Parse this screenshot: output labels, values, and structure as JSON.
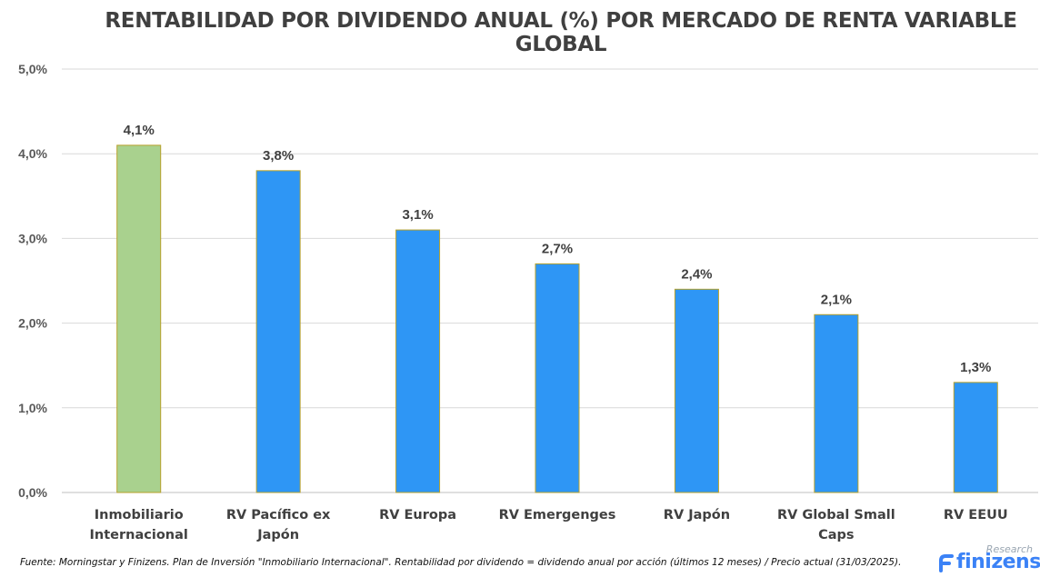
{
  "chart_data": {
    "type": "bar",
    "title": "RENTABILIDAD POR DIVIDENDO ANUAL (%) POR MERCADO DE RENTA VARIABLE GLOBAL",
    "categories": [
      [
        "Inmobiliario",
        "Internacional"
      ],
      [
        "RV Pacífico ex",
        "Japón"
      ],
      [
        "RV Europa"
      ],
      [
        "RV Emergenges"
      ],
      [
        "RV Japón"
      ],
      [
        "RV Global Small",
        "Caps"
      ],
      [
        "RV EEUU"
      ]
    ],
    "values": [
      4.1,
      3.8,
      3.1,
      2.7,
      2.4,
      2.1,
      1.3
    ],
    "data_labels": [
      "4,1%",
      "3,8%",
      "3,1%",
      "2,7%",
      "2,4%",
      "2,1%",
      "1,3%"
    ],
    "bar_colors": [
      "#a9d18e",
      "#2e96f5",
      "#2e96f5",
      "#2e96f5",
      "#2e96f5",
      "#2e96f5",
      "#2e96f5"
    ],
    "bar_outline_color": "#b8a12a",
    "y_ticks": [
      0,
      1,
      2,
      3,
      4,
      5
    ],
    "y_tick_labels": [
      "0,0%",
      "1,0%",
      "2,0%",
      "3,0%",
      "4,0%",
      "5,0%"
    ],
    "ylim": [
      0,
      5
    ],
    "grid": true,
    "xlabel": "",
    "ylabel": ""
  },
  "footnote": "Fuente: Morningstar y Finizens. Plan de Inversión \"Inmobiliario Internacional\". Rentabilidad por dividendo = dividendo anual por acción (últimos 12 meses) / Precio actual (31/03/2025).",
  "logo": {
    "word": "finizens",
    "tag": "Research",
    "color": "#3b82f6"
  }
}
